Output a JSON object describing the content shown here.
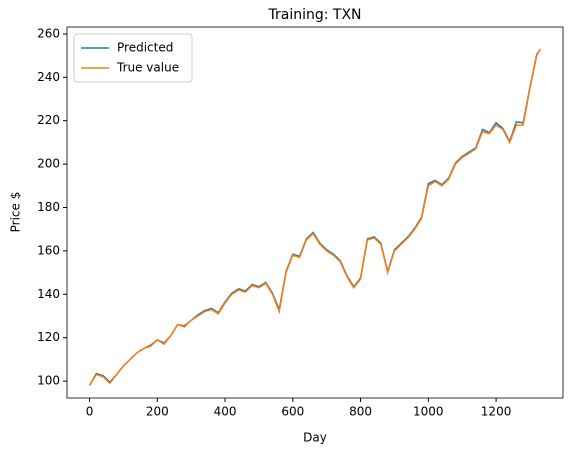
{
  "chart_data": {
    "type": "line",
    "title": "Training: TXN",
    "xlabel": "Day",
    "ylabel": "Price $",
    "x": [
      0,
      20,
      40,
      60,
      80,
      100,
      120,
      140,
      160,
      180,
      200,
      220,
      240,
      260,
      280,
      300,
      320,
      340,
      360,
      380,
      400,
      420,
      440,
      460,
      480,
      500,
      520,
      540,
      560,
      580,
      600,
      620,
      640,
      660,
      680,
      700,
      720,
      740,
      760,
      780,
      800,
      820,
      840,
      860,
      880,
      900,
      920,
      940,
      960,
      980,
      1000,
      1020,
      1040,
      1060,
      1080,
      1100,
      1120,
      1140,
      1160,
      1180,
      1200,
      1220,
      1240,
      1260,
      1280,
      1300,
      1320,
      1331
    ],
    "series": [
      {
        "name": "Predicted",
        "color": "#1f77b4",
        "values": [
          98,
          103.5,
          102.5,
          99.5,
          103,
          107,
          110,
          113,
          115,
          116.5,
          119,
          117.5,
          121,
          126,
          125.5,
          128,
          130.5,
          132.5,
          133.5,
          131.5,
          136.5,
          140.5,
          142.5,
          141.5,
          144.5,
          143.5,
          145.5,
          140.5,
          133,
          150.5,
          158.5,
          157.5,
          165.5,
          168.5,
          163.5,
          160.5,
          158.5,
          155.5,
          148.5,
          143.5,
          147.5,
          165.5,
          166.5,
          163.5,
          150.5,
          160.5,
          163.5,
          166.5,
          170.5,
          175.5,
          191,
          192.5,
          190.5,
          193.5,
          200.5,
          203.5,
          205.5,
          207.5,
          216,
          214.5,
          219,
          216.5,
          210.5,
          219.5,
          219,
          235.5,
          250.5,
          253
        ]
      },
      {
        "name": "True value",
        "color": "#ff7f0e",
        "values": [
          98,
          103,
          102,
          99,
          103,
          107,
          110,
          113,
          115,
          116,
          119,
          117,
          121,
          126,
          125,
          128,
          130,
          132,
          133,
          131,
          136,
          140,
          142,
          141,
          144,
          143,
          145,
          140,
          132,
          150,
          158,
          157,
          165,
          168,
          163,
          160,
          158,
          155,
          148,
          143,
          147,
          165,
          166,
          163,
          150,
          160,
          163,
          166,
          170,
          175,
          190,
          192,
          190,
          193,
          200,
          203,
          205,
          207,
          215,
          214,
          218,
          216,
          210,
          218,
          218,
          235,
          250,
          253
        ]
      }
    ],
    "xlim": [
      -66.55,
      1397.55
    ],
    "ylim": [
      92.2,
      263.2
    ],
    "xticks": [
      0,
      200,
      400,
      600,
      800,
      1000,
      1200
    ],
    "yticks": [
      100,
      120,
      140,
      160,
      180,
      200,
      220,
      240,
      260
    ],
    "legend": "upper left"
  }
}
